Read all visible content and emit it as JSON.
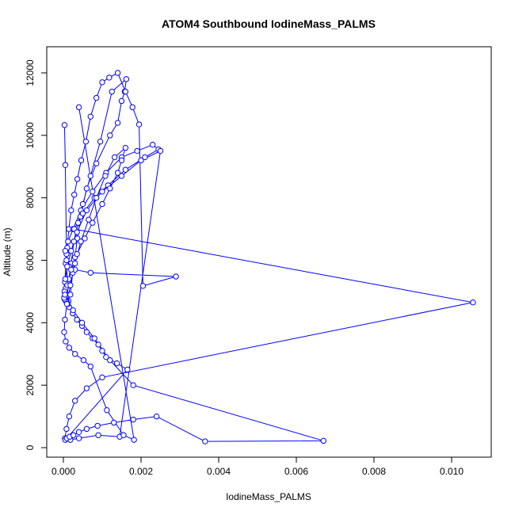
{
  "chart_data": {
    "type": "line",
    "title": "ATOM4 Southbound IodineMass_PALMS",
    "xlabel": "IodineMass_PALMS",
    "ylabel": "Altitude (m)",
    "xlim": [
      0,
      0.0108
    ],
    "ylim": [
      0,
      12400
    ],
    "xticks": [
      0.0,
      0.002,
      0.004,
      0.006,
      0.008,
      0.01
    ],
    "xtick_labels": [
      "0.000",
      "0.002",
      "0.004",
      "0.006",
      "0.008",
      "0.010"
    ],
    "yticks": [
      0,
      2000,
      4000,
      6000,
      8000,
      10000,
      12000
    ],
    "ytick_labels": [
      "0",
      "2000",
      "4000",
      "6000",
      "8000",
      "10000",
      "12000"
    ],
    "grid": false,
    "legend": false,
    "marker": "open-circle",
    "series_color": "#0000ff",
    "series": [
      {
        "x": [
          3e-05,
          5e-05,
          8e-05,
          0.0001,
          0.00013,
          0.00018,
          0.00024,
          0.0003,
          0.00036,
          0.00044,
          0.0006,
          0.00085,
          0.0012,
          0.0014,
          0.0015,
          0.00158,
          0.00162,
          0.00125,
          0.00095,
          0.0007,
          0.0005,
          0.00038,
          0.00027,
          0.0002,
          0.00014,
          9e-05,
          6e-05,
          4e-05,
          6e-05,
          0.0001,
          0.00014,
          0.0002,
          0.00028,
          0.00036,
          0.00046,
          0.00058,
          0.0007,
          0.00085,
          0.001,
          0.00118,
          0.0014,
          0.0016,
          0.00178,
          0.00195,
          0.00205,
          0.0029,
          0.0007,
          0.0003,
          0.00015,
          8e-05,
          5e-05,
          0.00012,
          0.00025,
          0.00045,
          0.00075,
          0.0011,
          0.0015,
          0.0019,
          0.0023,
          0.00245,
          0.0021,
          0.0016,
          0.00115,
          0.0008,
          0.0005,
          0.00028,
          0.01055,
          0.001,
          0.0006,
          0.0003,
          0.00015,
          8e-05,
          4e-05,
          0.00018,
          0.0004,
          0.0009,
          0.00145,
          0.0025,
          0.002,
          0.0015,
          0.001,
          0.0006,
          0.00035,
          0.0002,
          0.0001,
          5e-05,
          3e-05,
          8e-05,
          0.00015,
          0.00024,
          0.00035,
          0.00048,
          0.0006,
          0.00075,
          0.0009,
          0.001,
          0.0011,
          0.00138,
          0.00165,
          5e-05,
          9e-05,
          0.00016,
          0.00026,
          0.0004,
          0.0006,
          0.00088,
          0.0013,
          0.0018,
          0.0024,
          0.00365,
          0.0067,
          0.0018,
          0.0012,
          0.0008,
          0.00048,
          0.00025,
          0.00012,
          6e-05,
          3e-05,
          2e-05,
          4e-05,
          0.0001,
          0.0002,
          0.00035,
          0.00055,
          0.00075,
          0.001,
          0.0012,
          0.0014,
          0.0015,
          0.0016,
          0.00132,
          0.00108,
          0.00085,
          0.00065,
          0.00045,
          0.0003,
          0.00018,
          9e-05,
          4e-05,
          2e-05,
          6e-05,
          0.00015,
          0.0003,
          0.00052,
          0.0007,
          0.00112,
          0.00155,
          0.00182,
          0.0004
        ],
        "y": [
          10330,
          9050,
          6200,
          5300,
          4700,
          4900,
          5600,
          6100,
          6700,
          7400,
          8300,
          9100,
          10000,
          10400,
          11100,
          11400,
          11800,
          11400,
          9800,
          8700,
          7800,
          7200,
          6600,
          5900,
          5400,
          5200,
          5100,
          5300,
          5900,
          6400,
          7000,
          7600,
          8100,
          8600,
          9200,
          9800,
          10600,
          11200,
          11700,
          11850,
          12000,
          11400,
          10900,
          10350,
          5180,
          5480,
          5600,
          5700,
          5800,
          6000,
          6300,
          6600,
          7000,
          7600,
          8200,
          8800,
          9300,
          9500,
          9700,
          9550,
          9300,
          8900,
          8400,
          8000,
          7500,
          7000,
          4650,
          2250,
          1900,
          1500,
          1000,
          600,
          300,
          250,
          300,
          400,
          350,
          9500,
          9200,
          8700,
          8200,
          7600,
          6900,
          6300,
          5800,
          5400,
          5000,
          4700,
          4500,
          4300,
          4100,
          3900,
          3700,
          3500,
          3300,
          3100,
          2900,
          2700,
          2500,
          250,
          300,
          350,
          400,
          500,
          600,
          700,
          800,
          900,
          1000,
          200,
          220,
          2000,
          2800,
          3500,
          4000,
          4400,
          4600,
          4700,
          4750,
          4800,
          4900,
          5200,
          5700,
          6200,
          6700,
          7200,
          7800,
          8300,
          8800,
          9200,
          9600,
          9300,
          8700,
          8000,
          7300,
          6600,
          5900,
          5200,
          4600,
          4100,
          3700,
          3400,
          3200,
          3000,
          2800,
          2600,
          1200,
          400,
          250,
          10900
        ]
      }
    ]
  }
}
